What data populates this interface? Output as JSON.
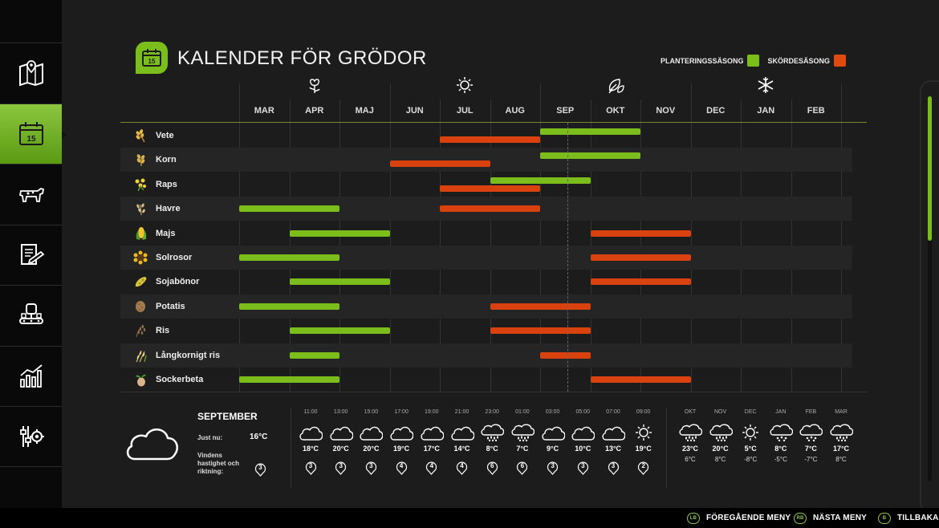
{
  "header": {
    "title": "KALENDER FÖR GRÖDOR",
    "icon_number": "15"
  },
  "legend": [
    {
      "label": "PLANTERINGSSÄSONG",
      "color": "#7bbd1a"
    },
    {
      "label": "SKÖRDESÄSONG",
      "color": "#e04a10"
    }
  ],
  "colors": {
    "planting": "#7bbd1a",
    "harvest": "#d9410e",
    "accent": "#7bbd1a"
  },
  "sidebar": [
    {
      "name": "map-icon",
      "active": false
    },
    {
      "name": "calendar-icon",
      "active": true,
      "number": "15"
    },
    {
      "name": "animals-icon",
      "active": false
    },
    {
      "name": "contracts-icon",
      "active": false
    },
    {
      "name": "production-icon",
      "active": false
    },
    {
      "name": "statistics-icon",
      "active": false
    },
    {
      "name": "settings-icon",
      "active": false
    }
  ],
  "seasons": [
    {
      "name": "flower-icon",
      "month_index": 1
    },
    {
      "name": "sun-icon",
      "month_index": 4
    },
    {
      "name": "leaves-icon",
      "month_index": 7
    },
    {
      "name": "snowflake-icon",
      "month_index": 10
    }
  ],
  "months": [
    "MAR",
    "APR",
    "MAJ",
    "JUN",
    "JUL",
    "AUG",
    "SEP",
    "OKT",
    "NOV",
    "DEC",
    "JAN",
    "FEB"
  ],
  "current_month_index": 6.55,
  "crops": [
    {
      "name": "Vete",
      "icon": "wheat-icon",
      "plant": [
        [
          6,
          8
        ]
      ],
      "harvest": [
        [
          4,
          6
        ]
      ]
    },
    {
      "name": "Korn",
      "icon": "barley-icon",
      "plant": [
        [
          6,
          8
        ]
      ],
      "harvest": [
        [
          3,
          5
        ]
      ]
    },
    {
      "name": "Raps",
      "icon": "canola-icon",
      "plant": [
        [
          5,
          7
        ]
      ],
      "harvest": [
        [
          4,
          6
        ]
      ]
    },
    {
      "name": "Havre",
      "icon": "oat-icon",
      "plant": [
        [
          0,
          2
        ]
      ],
      "harvest": [
        [
          4,
          6
        ]
      ]
    },
    {
      "name": "Majs",
      "icon": "corn-icon",
      "plant": [
        [
          1,
          3
        ]
      ],
      "harvest": [
        [
          7,
          9
        ]
      ]
    },
    {
      "name": "Solrosor",
      "icon": "sunflower-icon",
      "plant": [
        [
          0,
          2
        ]
      ],
      "harvest": [
        [
          7,
          9
        ]
      ]
    },
    {
      "name": "Sojabönor",
      "icon": "soybean-icon",
      "plant": [
        [
          1,
          3
        ]
      ],
      "harvest": [
        [
          7,
          9
        ]
      ]
    },
    {
      "name": "Potatis",
      "icon": "potato-icon",
      "plant": [
        [
          0,
          2
        ]
      ],
      "harvest": [
        [
          5,
          7
        ]
      ]
    },
    {
      "name": "Ris",
      "icon": "rice-icon",
      "plant": [
        [
          1,
          3
        ]
      ],
      "harvest": [
        [
          5,
          7
        ]
      ]
    },
    {
      "name": "Långkornigt ris",
      "icon": "long-grain-rice-icon",
      "plant": [
        [
          1,
          2
        ]
      ],
      "harvest": [
        [
          6,
          7
        ]
      ]
    },
    {
      "name": "Sockerbeta",
      "icon": "sugarbeet-icon",
      "plant": [
        [
          0,
          2
        ]
      ],
      "harvest": [
        [
          7,
          9
        ]
      ]
    }
  ],
  "weather": {
    "month": "SEPTEMBER",
    "now_label": "Just nu:",
    "now_temp": "16°C",
    "wind_label": "Vindens hastighet och riktning:",
    "wind_now": "3",
    "hourly": [
      {
        "time": "11:00",
        "icon": "cloud-icon",
        "temp": "18°C",
        "wind": "3"
      },
      {
        "time": "13:00",
        "icon": "cloud-icon",
        "temp": "20°C",
        "wind": "3"
      },
      {
        "time": "15:00",
        "icon": "cloud-icon",
        "temp": "20°C",
        "wind": "3"
      },
      {
        "time": "17:00",
        "icon": "cloud-icon",
        "temp": "19°C",
        "wind": "4"
      },
      {
        "time": "19:00",
        "icon": "cloud-icon",
        "temp": "17°C",
        "wind": "4"
      },
      {
        "time": "21:00",
        "icon": "cloud-icon",
        "temp": "14°C",
        "wind": "4"
      },
      {
        "time": "23:00",
        "icon": "rain-icon",
        "temp": "8°C",
        "wind": "6"
      },
      {
        "time": "01:00",
        "icon": "rain-icon",
        "temp": "7°C",
        "wind": "6"
      },
      {
        "time": "03:00",
        "icon": "cloud-icon",
        "temp": "9°C",
        "wind": "3"
      },
      {
        "time": "05:00",
        "icon": "cloud-icon",
        "temp": "10°C",
        "wind": "3"
      },
      {
        "time": "07:00",
        "icon": "cloud-icon",
        "temp": "13°C",
        "wind": "3"
      },
      {
        "time": "09:00",
        "icon": "sun-icon",
        "temp": "19°C",
        "wind": "2"
      }
    ],
    "monthly": [
      {
        "month": "OKT",
        "icon": "rain-icon",
        "high": "23°C",
        "low": "6°C"
      },
      {
        "month": "NOV",
        "icon": "rain-icon",
        "high": "20°C",
        "low": "8°C"
      },
      {
        "month": "DEC",
        "icon": "sun-icon",
        "high": "5°C",
        "low": "-8°C"
      },
      {
        "month": "JAN",
        "icon": "snow-icon",
        "high": "8°C",
        "low": "-5°C"
      },
      {
        "month": "FEB",
        "icon": "snow-icon",
        "high": "7°C",
        "low": "-7°C"
      },
      {
        "month": "MAR",
        "icon": "rain-icon",
        "high": "17°C",
        "low": "8°C"
      }
    ]
  },
  "footer": [
    {
      "key": "LB",
      "label": "FÖREGÅENDE MENY"
    },
    {
      "key": "RB",
      "label": "NÄSTA MENY"
    },
    {
      "key": "B",
      "label": "TILLBAKA"
    }
  ]
}
